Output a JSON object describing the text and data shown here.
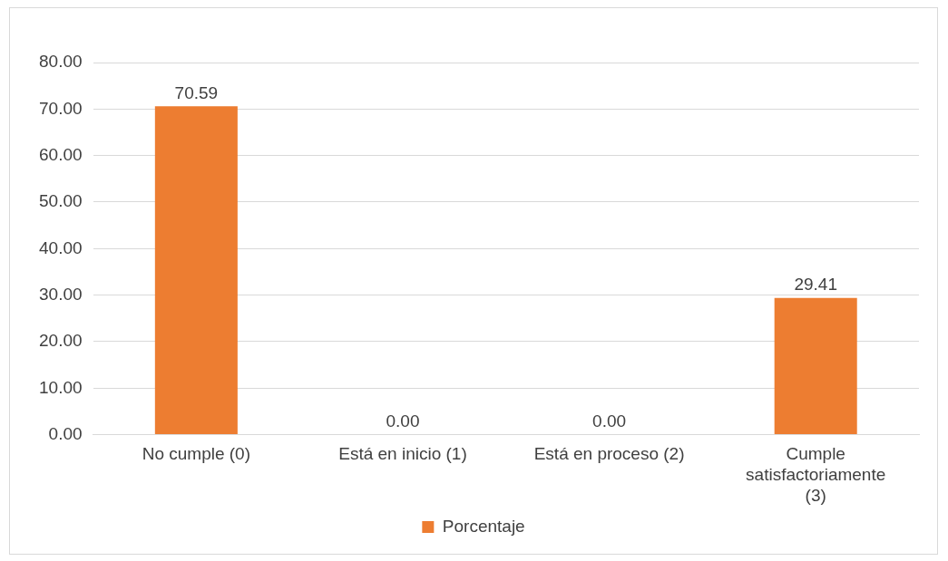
{
  "chart_data": {
    "type": "bar",
    "categories": [
      "No cumple (0)",
      "Está en inicio (1)",
      "Está en proceso (2)",
      "Cumple satisfactoriamente (3)"
    ],
    "series": [
      {
        "name": "Porcentaje",
        "color": "#ed7d31",
        "values": [
          70.59,
          0,
          0,
          29.41
        ],
        "value_labels": [
          "70.59",
          "0.00",
          "0.00",
          "29.41"
        ]
      }
    ],
    "ylim": [
      0,
      80
    ],
    "yticks": [
      {
        "value": 0,
        "label": "0.00"
      },
      {
        "value": 10,
        "label": "10.00"
      },
      {
        "value": 20,
        "label": "20.00"
      },
      {
        "value": 30,
        "label": "30.00"
      },
      {
        "value": 40,
        "label": "40.00"
      },
      {
        "value": 50,
        "label": "50.00"
      },
      {
        "value": 60,
        "label": "60.00"
      },
      {
        "value": 70,
        "label": "70.00"
      },
      {
        "value": 80,
        "label": "80.00"
      }
    ],
    "grid": "y",
    "legend": "bottom"
  }
}
